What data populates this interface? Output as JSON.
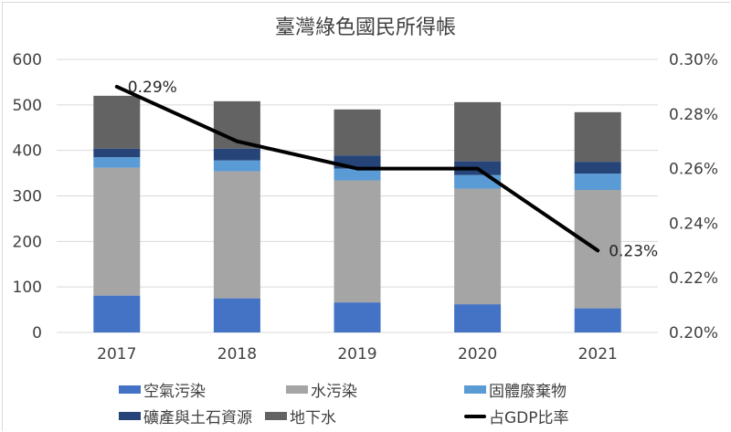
{
  "chart_data": {
    "type": "bar",
    "stacked": true,
    "title": "臺灣綠色國民所得帳",
    "categories": [
      "2017",
      "2018",
      "2019",
      "2020",
      "2021"
    ],
    "series": [
      {
        "name": "空氣污染",
        "color": "#4472c4",
        "values": [
          81,
          75,
          66,
          62,
          53
        ]
      },
      {
        "name": "水污染",
        "color": "#a5a5a5",
        "values": [
          281,
          279,
          268,
          254,
          260
        ]
      },
      {
        "name": "固體廢棄物",
        "color": "#5b9bd5",
        "values": [
          23,
          24,
          26,
          30,
          36
        ]
      },
      {
        "name": "礦產與土石資源",
        "color": "#264478",
        "values": [
          19,
          26,
          29,
          30,
          26
        ]
      },
      {
        "name": "地下水",
        "color": "#636363",
        "values": [
          116,
          104,
          101,
          130,
          109
        ]
      }
    ],
    "line_series": {
      "name": "占GDP比率",
      "color": "#000000",
      "axis": "right",
      "values": [
        0.29,
        0.27,
        0.26,
        0.26,
        0.23
      ],
      "data_labels": {
        "0": "0.29%",
        "4": "0.23%"
      }
    },
    "y_left": {
      "ylim": [
        0,
        600
      ],
      "ticks": [
        "0",
        "100",
        "200",
        "300",
        "400",
        "500",
        "600"
      ]
    },
    "y_right": {
      "ylim": [
        0.2,
        0.3
      ],
      "ticks": [
        "0.20%",
        "0.22%",
        "0.24%",
        "0.26%",
        "0.28%",
        "0.30%"
      ]
    },
    "grid": true,
    "legend_position": "bottom",
    "legend": [
      "空氣污染",
      "水污染",
      "固體廢棄物",
      "礦產與土石資源",
      "地下水",
      "占GDP比率"
    ]
  }
}
